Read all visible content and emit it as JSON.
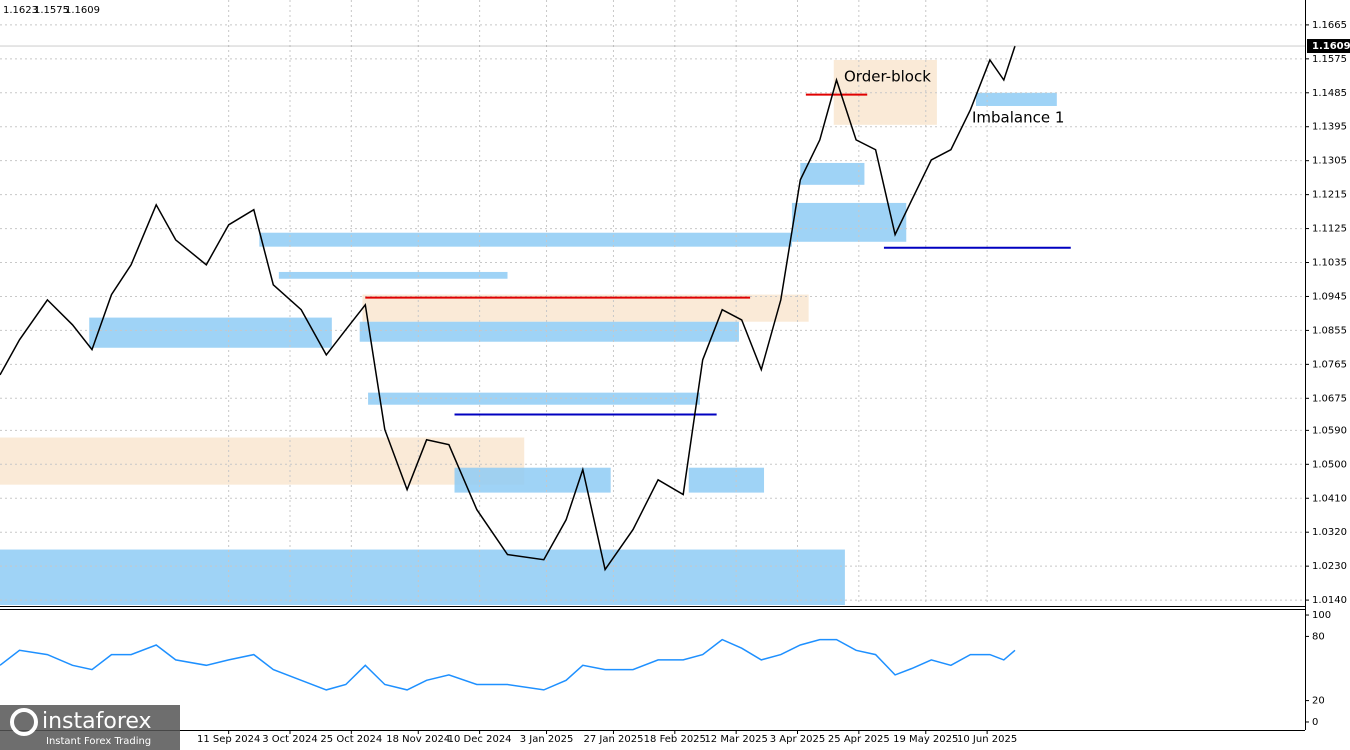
{
  "header": [
    "1.1623",
    "1.1575",
    "1.1609"
  ],
  "annotations": [
    "Order-block",
    "Imbalance 1"
  ],
  "watermark": {
    "name": "instaforex",
    "tagline": "Instant Forex Trading"
  },
  "chart_data": [
    {
      "type": "line",
      "color": "#000000",
      "x": [
        "21 Jun 2024",
        "28 Jun 2024",
        "8 Jul 2024",
        "17 Jul 2024",
        "24 Jul 2024",
        "31 Jul 2024",
        "7 Aug 2024",
        "16 Aug 2024",
        "23 Aug 2024",
        "3 Sep 2024",
        "11 Sep 2024",
        "20 Sep 2024",
        "27 Sep 2024",
        "7 Oct 2024",
        "16 Oct 2024",
        "23 Oct 2024",
        "30 Oct 2024",
        "6 Nov 2024",
        "14 Nov 2024",
        "21 Nov 2024",
        "29 Nov 2024",
        "9 Dec 2024",
        "20 Dec 2024",
        "2 Jan 2025",
        "10 Jan 2025",
        "16 Jan 2025",
        "24 Jan 2025",
        "3 Feb 2025",
        "12 Feb 2025",
        "21 Feb 2025",
        "28 Feb 2025",
        "7 Mar 2025",
        "14 Mar 2025",
        "21 Mar 2025",
        "28 Mar 2025",
        "4 Apr 2025",
        "11 Apr 2025",
        "17 Apr 2025",
        "24 Apr 2025",
        "1 May 2025",
        "8 May 2025",
        "14 May 2025",
        "21 May 2025",
        "28 May 2025",
        "4 Jun 2025",
        "11 Jun 2025",
        "16 Jun 2025",
        "20 Jun 2025"
      ],
      "values": [
        1.0737,
        1.083,
        1.0936,
        1.087,
        1.0804,
        1.095,
        1.1029,
        1.1188,
        1.1095,
        1.1029,
        1.1135,
        1.1175,
        1.0976,
        1.091,
        1.079,
        1.0857,
        1.0923,
        1.0592,
        1.0433,
        1.0565,
        1.0552,
        1.038,
        1.0261,
        1.0247,
        1.0353,
        1.0486,
        1.0221,
        1.0327,
        1.0459,
        1.042,
        1.0777,
        1.091,
        1.0883,
        1.0751,
        1.0936,
        1.1254,
        1.136,
        1.1519,
        1.136,
        1.1334,
        1.1109,
        1.1201,
        1.1307,
        1.1334,
        1.144,
        1.1572,
        1.1519,
        1.1609
      ],
      "xlim": [
        "21 Jun 2024",
        "2 Oct 2025"
      ],
      "xticks": [
        "11 Sep 2024",
        "3 Oct 2024",
        "25 Oct 2024",
        "18 Nov 2024",
        "10 Dec 2024",
        "3 Jan 2025",
        "27 Jan 2025",
        "18 Feb 2025",
        "12 Mar 2025",
        "3 Apr 2025",
        "25 Apr 2025",
        "19 May 2025",
        "10 Jun 2025"
      ],
      "ylim": [
        1.0127,
        1.1731
      ],
      "yticks": [
        1.1665,
        1.1575,
        1.1485,
        1.1395,
        1.1305,
        1.1215,
        1.1125,
        1.1035,
        1.0945,
        1.0855,
        1.0765,
        1.0675,
        {
          "value": 1.059,
          "label": "1.0590"
        },
        {
          "value": 1.05,
          "label": "1.0500"
        },
        {
          "value": 1.041,
          "label": "1.0410"
        },
        {
          "value": 1.032,
          "label": "1.0320"
        },
        {
          "value": 1.023,
          "label": "1.0230"
        },
        {
          "value": 1.014,
          "label": "1.0140"
        }
      ],
      "grid": true,
      "zones": [
        {
          "from": "21 Jun 2024",
          "to": "20 Apr 2025",
          "low": 1.0127,
          "high": 1.0274,
          "color": "#8ecbf5"
        },
        {
          "from": "21 Jun 2024",
          "to": "26 Dec 2024",
          "low": 1.0446,
          "high": 1.0571,
          "color": "#f9e6d0"
        },
        {
          "from": "31 Oct 2024",
          "to": "27 Feb 2025",
          "low": 1.0658,
          "high": 1.069,
          "color": "#8ecbf5"
        },
        {
          "from": "29 Oct 2024",
          "to": "7 Apr 2025",
          "low": 1.0878,
          "high": 1.095,
          "color": "#f9e6d0"
        },
        {
          "from": "28 Oct 2024",
          "to": "13 Mar 2025",
          "low": 1.0825,
          "high": 1.0878,
          "color": "#8ecbf5"
        },
        {
          "from": "22 Sep 2024",
          "to": "1 Apr 2025",
          "low": 1.1077,
          "high": 1.1114,
          "color": "#8ecbf5"
        },
        {
          "from": "1 Apr 2025",
          "to": "12 May 2025",
          "low": 1.109,
          "high": 1.1193,
          "color": "#8ecbf5"
        },
        {
          "from": "4 Apr 2025",
          "to": "27 Apr 2025",
          "low": 1.1241,
          "high": 1.1299,
          "color": "#8ecbf5"
        },
        {
          "from": "16 Apr 2025",
          "to": "23 May 2025",
          "low": 1.14,
          "high": 1.1572,
          "color": "#f9e6d0"
        },
        {
          "from": "6 Jun 2025",
          "to": "5 Jul 2025",
          "low": 1.145,
          "high": 1.1485,
          "color": "#8ecbf5"
        },
        {
          "from": "23 Jul 2024",
          "to": "18 Oct 2024",
          "low": 1.0809,
          "high": 1.0889,
          "color": "#8ecbf5"
        },
        {
          "from": "1 Dec 2024",
          "to": "26 Jan 2025",
          "low": 1.0425,
          "high": 1.0491,
          "color": "#8ecbf5"
        },
        {
          "from": "23 Feb 2025",
          "to": "22 Mar 2025",
          "low": 1.0425,
          "high": 1.0491,
          "color": "#8ecbf5"
        },
        {
          "from": "29 Sep 2024",
          "to": "20 Dec 2024",
          "low": 1.0992,
          "high": 1.101,
          "color": "#8ecbf5"
        }
      ],
      "levels": [
        {
          "from": "30 Oct 2024",
          "to": "17 Mar 2025",
          "value": 1.0942,
          "color": "#e00000"
        },
        {
          "from": "1 Dec 2024",
          "to": "5 Mar 2025",
          "value": 1.0632,
          "color": "#0000c0"
        },
        {
          "from": "4 May 2025",
          "to": "10 Jul 2025",
          "value": 1.1074,
          "color": "#0000c0"
        },
        {
          "from": "6 Apr 2025",
          "to": "28 Apr 2025",
          "value": 1.148,
          "color": "#e00000"
        }
      ]
    },
    {
      "type": "line",
      "color": "#1e90ff",
      "x": [
        "21 Jun 2024",
        "28 Jun 2024",
        "8 Jul 2024",
        "17 Jul 2024",
        "24 Jul 2024",
        "31 Jul 2024",
        "7 Aug 2024",
        "16 Aug 2024",
        "23 Aug 2024",
        "3 Sep 2024",
        "11 Sep 2024",
        "20 Sep 2024",
        "27 Sep 2024",
        "7 Oct 2024",
        "16 Oct 2024",
        "23 Oct 2024",
        "30 Oct 2024",
        "6 Nov 2024",
        "14 Nov 2024",
        "21 Nov 2024",
        "29 Nov 2024",
        "9 Dec 2024",
        "20 Dec 2024",
        "2 Jan 2025",
        "10 Jan 2025",
        "16 Jan 2025",
        "24 Jan 2025",
        "3 Feb 2025",
        "12 Feb 2025",
        "21 Feb 2025",
        "28 Feb 2025",
        "7 Mar 2025",
        "14 Mar 2025",
        "21 Mar 2025",
        "28 Mar 2025",
        "4 Apr 2025",
        "11 Apr 2025",
        "17 Apr 2025",
        "24 Apr 2025",
        "1 May 2025",
        "8 May 2025",
        "14 May 2025",
        "21 May 2025",
        "28 May 2025",
        "4 Jun 2025",
        "11 Jun 2025",
        "16 Jun 2025",
        "20 Jun 2025"
      ],
      "values": [
        53,
        67,
        63,
        53,
        49,
        63,
        63,
        72,
        58,
        53,
        58,
        63,
        49,
        39,
        30,
        35,
        53,
        35,
        30,
        39,
        44,
        35,
        35,
        30,
        39,
        53,
        49,
        49,
        58,
        58,
        63,
        77,
        69,
        58,
        63,
        72,
        77,
        77,
        67,
        63,
        44,
        50,
        58,
        53,
        63,
        63,
        58,
        67
      ],
      "ylim": [
        -7.5,
        104.7
      ],
      "yticks": [
        0,
        20,
        80,
        100
      ]
    }
  ]
}
